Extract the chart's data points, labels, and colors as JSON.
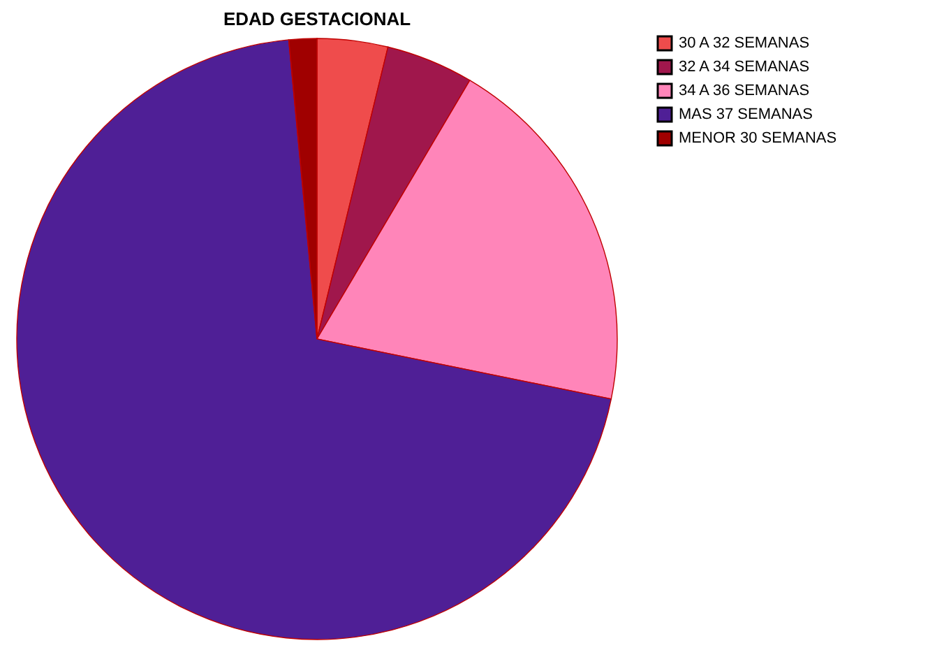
{
  "chart_data": {
    "type": "pie",
    "title": "EDAD GESTACIONAL",
    "categories": [
      "30 A 32 SEMANAS",
      "32 A 34 SEMANAS",
      "34 A 36 SEMANAS",
      "MAS 37 SEMANAS",
      "MENOR 30 SEMANAS"
    ],
    "values": [
      3.8,
      4.7,
      19.7,
      70.3,
      1.5
    ],
    "colors": [
      "#ef4c4c",
      "#a0174c",
      "#ff85b9",
      "#4f1f96",
      "#a00000"
    ],
    "legend": "top right"
  }
}
